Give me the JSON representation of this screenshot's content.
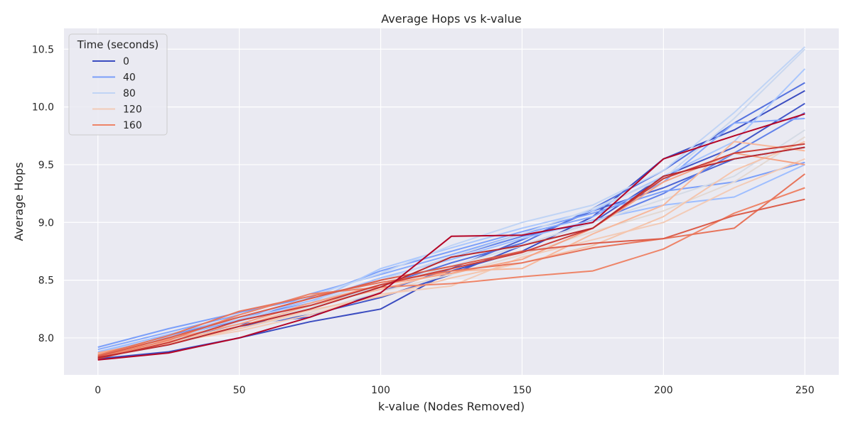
{
  "chart_data": {
    "type": "line",
    "title": "Average Hops vs k-value",
    "xlabel": "k-value (Nodes Removed)",
    "ylabel": "Average Hops",
    "xlim": [
      -12,
      262
    ],
    "ylim": [
      7.68,
      10.68
    ],
    "xticks": [
      0,
      50,
      100,
      150,
      200,
      250
    ],
    "yticks": [
      8.0,
      8.5,
      9.0,
      9.5,
      10.0,
      10.5
    ],
    "xtick_labels": [
      "0",
      "50",
      "100",
      "150",
      "200",
      "250"
    ],
    "ytick_labels": [
      "8.0",
      "8.5",
      "9.0",
      "9.5",
      "10.0",
      "10.5"
    ],
    "grid": true,
    "background": "#eaeaf2",
    "legend": {
      "title": "Time (seconds)",
      "position": "top-left",
      "entries": [
        {
          "label": "0",
          "color": "#3b4cc0"
        },
        {
          "label": "40",
          "color": "#7b9ff9"
        },
        {
          "label": "80",
          "color": "#c0d4f5"
        },
        {
          "label": "120",
          "color": "#f2cbb7"
        },
        {
          "label": "160",
          "color": "#ee8468"
        }
      ]
    },
    "x": [
      0,
      25,
      50,
      75,
      100,
      125,
      150,
      175,
      200,
      225,
      250
    ],
    "series": [
      {
        "name": "0",
        "color": "#3b4cc0",
        "values": [
          7.82,
          7.88,
          8.0,
          8.14,
          8.25,
          8.58,
          8.75,
          9.05,
          9.55,
          9.8,
          10.14
        ]
      },
      {
        "color": "#4257c9",
        "values": [
          7.83,
          7.95,
          8.1,
          8.2,
          8.35,
          8.55,
          8.8,
          9.0,
          9.4,
          9.65,
          10.03
        ]
      },
      {
        "color": "#4a63d3",
        "values": [
          7.84,
          7.98,
          8.12,
          8.18,
          8.4,
          8.6,
          8.85,
          9.1,
          9.3,
          9.55,
          9.65
        ]
      },
      {
        "color": "#5572df",
        "values": [
          7.86,
          8.0,
          8.15,
          8.28,
          8.45,
          8.65,
          8.82,
          9.12,
          9.45,
          9.86,
          10.21
        ]
      },
      {
        "color": "#6282ea",
        "values": [
          7.85,
          8.02,
          8.18,
          8.3,
          8.5,
          8.7,
          8.88,
          9.0,
          9.25,
          9.6,
          9.95
        ]
      },
      {
        "name": "40",
        "color": "#7b9ff9",
        "values": [
          7.92,
          8.08,
          8.22,
          8.35,
          8.58,
          8.75,
          8.92,
          9.08,
          9.27,
          9.35,
          9.52
        ]
      },
      {
        "color": "#86a9fc",
        "values": [
          7.9,
          8.05,
          8.2,
          8.38,
          8.55,
          8.72,
          8.9,
          9.05,
          9.35,
          9.86,
          9.9
        ]
      },
      {
        "color": "#9ebeff",
        "values": [
          7.88,
          8.03,
          8.18,
          8.32,
          8.52,
          8.68,
          8.86,
          9.02,
          9.15,
          9.22,
          9.5
        ]
      },
      {
        "color": "#aac7fd",
        "values": [
          7.87,
          8.01,
          8.16,
          8.3,
          8.6,
          8.78,
          8.95,
          9.1,
          9.4,
          9.7,
          10.33
        ]
      },
      {
        "name": "80",
        "color": "#c0d4f5",
        "values": [
          7.86,
          8.0,
          8.14,
          8.36,
          8.56,
          8.8,
          9.0,
          9.15,
          9.45,
          9.95,
          10.52
        ]
      },
      {
        "color": "#cad8ef",
        "values": [
          7.85,
          7.99,
          8.12,
          8.3,
          8.5,
          8.7,
          8.9,
          9.12,
          9.38,
          9.9,
          10.5
        ]
      },
      {
        "color": "#d5dbe5",
        "values": [
          7.84,
          7.98,
          8.1,
          8.26,
          8.45,
          8.62,
          8.8,
          9.0,
          9.2,
          9.4,
          9.8
        ]
      },
      {
        "color": "#e3d9d3",
        "values": [
          7.83,
          7.97,
          8.08,
          8.22,
          8.4,
          8.55,
          8.72,
          8.92,
          9.1,
          9.35,
          9.74
        ]
      },
      {
        "name": "120",
        "color": "#f2cbb7",
        "values": [
          7.85,
          7.96,
          8.06,
          8.2,
          8.38,
          8.45,
          8.7,
          8.85,
          9.0,
          9.3,
          9.55
        ]
      },
      {
        "color": "#f4c5ad",
        "values": [
          7.84,
          7.95,
          8.08,
          8.24,
          8.36,
          8.52,
          8.65,
          8.8,
          9.05,
          9.45,
          9.7
        ]
      },
      {
        "color": "#f7b89c",
        "values": [
          7.86,
          7.97,
          8.1,
          8.28,
          8.42,
          8.58,
          8.6,
          8.9,
          9.15,
          9.7,
          9.62
        ]
      },
      {
        "color": "#f6a385",
        "values": [
          7.87,
          7.99,
          8.12,
          8.3,
          8.46,
          8.56,
          8.68,
          8.95,
          9.35,
          9.6,
          9.5
        ]
      },
      {
        "name": "160",
        "color": "#ee8468",
        "values": [
          7.83,
          7.98,
          8.2,
          8.38,
          8.44,
          8.47,
          8.53,
          8.58,
          8.77,
          9.08,
          9.3
        ]
      },
      {
        "color": "#e7745b",
        "values": [
          7.85,
          8.02,
          8.23,
          8.36,
          8.48,
          8.58,
          8.65,
          8.78,
          8.86,
          8.95,
          9.42
        ]
      },
      {
        "color": "#dc5d4a",
        "values": [
          7.84,
          8.0,
          8.18,
          8.34,
          8.5,
          8.62,
          8.75,
          8.82,
          8.86,
          9.06,
          9.2
        ]
      },
      {
        "color": "#cc403a",
        "values": [
          7.82,
          7.96,
          8.15,
          8.28,
          8.46,
          8.6,
          8.74,
          8.95,
          9.38,
          9.6,
          9.68
        ]
      },
      {
        "color": "#bb2a2e",
        "values": [
          7.83,
          7.94,
          8.1,
          8.25,
          8.44,
          8.7,
          8.8,
          8.95,
          9.4,
          9.55,
          9.65
        ]
      },
      {
        "color": "#b40426",
        "values": [
          7.81,
          7.87,
          8.0,
          8.18,
          8.39,
          8.88,
          8.89,
          9.0,
          9.55,
          9.75,
          9.94
        ]
      }
    ]
  }
}
